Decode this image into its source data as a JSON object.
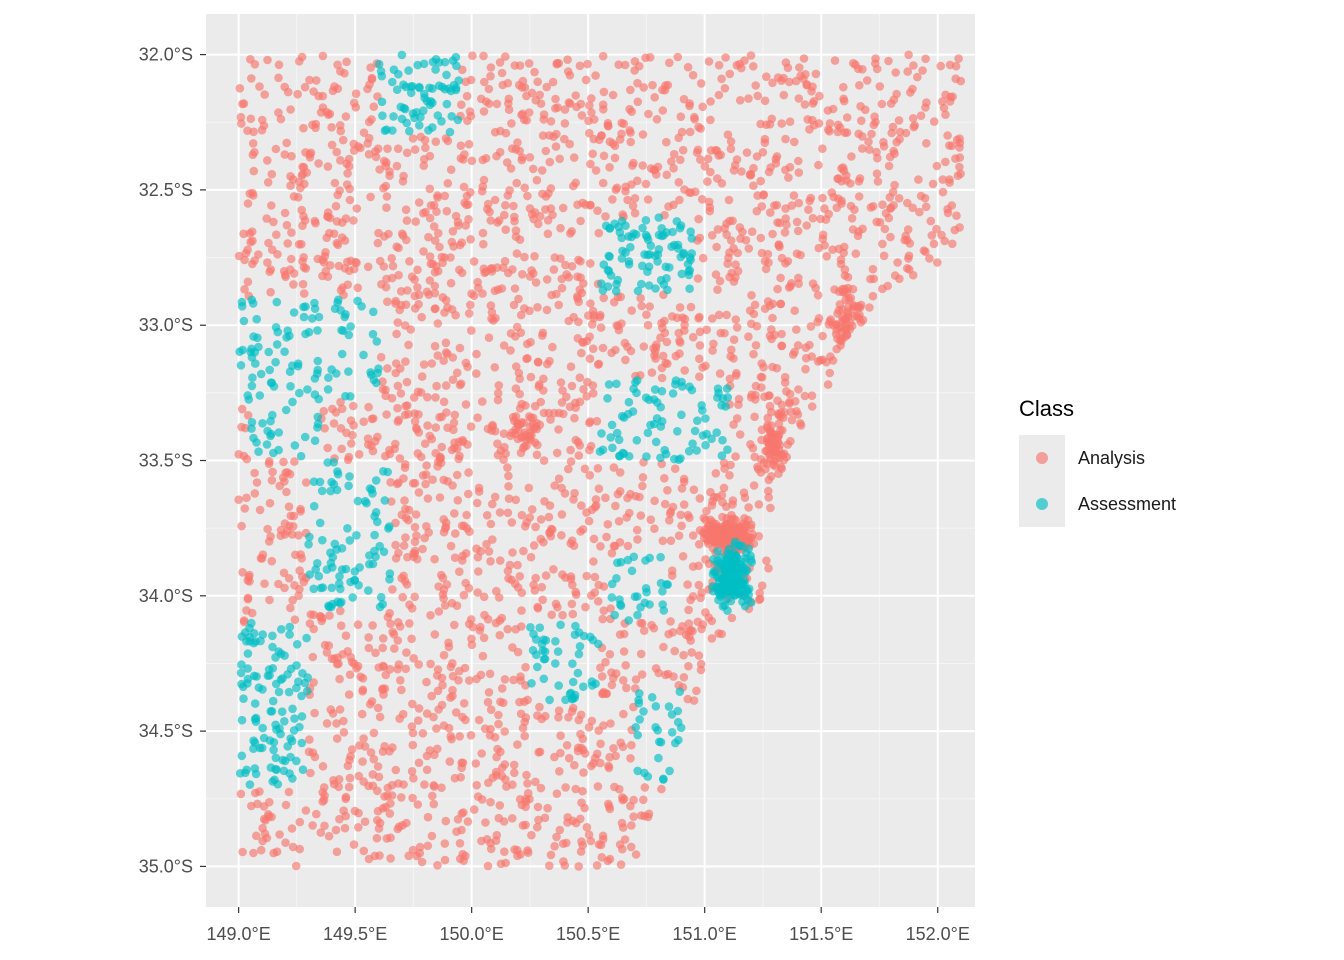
{
  "chart_data": {
    "type": "scatter",
    "title": "",
    "xlabel": "",
    "ylabel": "",
    "xlim": [
      148.86,
      152.16
    ],
    "ylim": [
      -35.15,
      -31.85
    ],
    "x_ticks": [
      149.0,
      149.5,
      150.0,
      150.5,
      151.0,
      151.5,
      152.0
    ],
    "x_tick_labels": [
      "149.0°E",
      "149.5°E",
      "150.0°E",
      "150.5°E",
      "151.0°E",
      "151.5°E",
      "152.0°E"
    ],
    "y_ticks": [
      -32.0,
      -32.5,
      -33.0,
      -33.5,
      -34.0,
      -34.5,
      -35.0
    ],
    "y_tick_labels": [
      "32.0°S",
      "32.5°S",
      "33.0°S",
      "33.5°S",
      "34.0°S",
      "34.5°S",
      "35.0°S"
    ],
    "grid": true,
    "legend": {
      "title": "Class",
      "position": "right",
      "entries": [
        {
          "label": "Analysis",
          "color": "#F8766D"
        },
        {
          "label": "Assessment",
          "color": "#00BFC4"
        }
      ]
    },
    "point_alpha": 0.65,
    "region": {
      "description_note": "points fill a coastal polygon",
      "boundary_lon_by_lat": [
        [
          -32.0,
          152.1
        ],
        [
          -32.5,
          152.1
        ],
        [
          -32.75,
          152.1
        ],
        [
          -32.85,
          151.85
        ],
        [
          -33.05,
          151.6
        ],
        [
          -33.2,
          151.55
        ],
        [
          -33.4,
          151.4
        ],
        [
          -33.6,
          151.3
        ],
        [
          -33.8,
          151.3
        ],
        [
          -34.0,
          151.25
        ],
        [
          -34.2,
          151.05
        ],
        [
          -34.4,
          150.95
        ],
        [
          -34.6,
          150.88
        ],
        [
          -34.8,
          150.8
        ],
        [
          -35.0,
          150.7
        ]
      ],
      "west_lon": 149.0,
      "south_lat": -35.0,
      "north_lat": -32.0
    },
    "series": [
      {
        "name": "Analysis",
        "color": "#F8766D",
        "background_count": 2600,
        "dense_clusters": [
          {
            "lon": 151.1,
            "lat": -33.78,
            "spread_lon": 0.1,
            "spread_lat": 0.06,
            "count": 200
          },
          {
            "lon": 151.62,
            "lat": -32.98,
            "spread_lon": 0.08,
            "spread_lat": 0.12,
            "count": 60
          },
          {
            "lon": 151.3,
            "lat": -33.45,
            "spread_lon": 0.06,
            "spread_lat": 0.15,
            "count": 60
          },
          {
            "lon": 150.22,
            "lat": -33.38,
            "spread_lon": 0.06,
            "spread_lat": 0.05,
            "count": 30
          }
        ]
      },
      {
        "name": "Assessment",
        "color": "#00BFC4",
        "blocks": [
          {
            "lon_min": 149.6,
            "lon_max": 149.95,
            "lat_min": -32.3,
            "lat_max": -32.0,
            "count": 70
          },
          {
            "lon_min": 150.55,
            "lon_max": 150.95,
            "lat_min": -32.88,
            "lat_max": -32.6,
            "count": 85
          },
          {
            "lon_min": 149.0,
            "lon_max": 149.6,
            "lat_min": -33.28,
            "lat_max": -32.9,
            "count": 90
          },
          {
            "lon_min": 150.55,
            "lon_max": 151.1,
            "lat_min": -33.5,
            "lat_max": -33.2,
            "count": 80
          },
          {
            "lon_min": 149.05,
            "lon_max": 149.35,
            "lat_min": -33.5,
            "lat_max": -33.25,
            "count": 25
          },
          {
            "lon_min": 149.3,
            "lon_max": 149.65,
            "lat_min": -34.05,
            "lat_max": -33.5,
            "count": 85
          },
          {
            "lon_min": 149.0,
            "lon_max": 149.3,
            "lat_min": -34.7,
            "lat_max": -34.1,
            "count": 110
          },
          {
            "lon_min": 150.25,
            "lon_max": 150.55,
            "lat_min": -34.4,
            "lat_max": -34.1,
            "count": 45
          },
          {
            "lon_min": 150.6,
            "lon_max": 150.85,
            "lat_min": -34.1,
            "lat_max": -33.85,
            "count": 30
          },
          {
            "lon_min": 150.7,
            "lon_max": 150.9,
            "lat_min": -34.7,
            "lat_max": -34.35,
            "count": 30
          }
        ],
        "dense_clusters": [
          {
            "lon": 151.12,
            "lat": -33.92,
            "spread_lon": 0.08,
            "spread_lat": 0.1,
            "count": 170
          }
        ]
      }
    ]
  }
}
